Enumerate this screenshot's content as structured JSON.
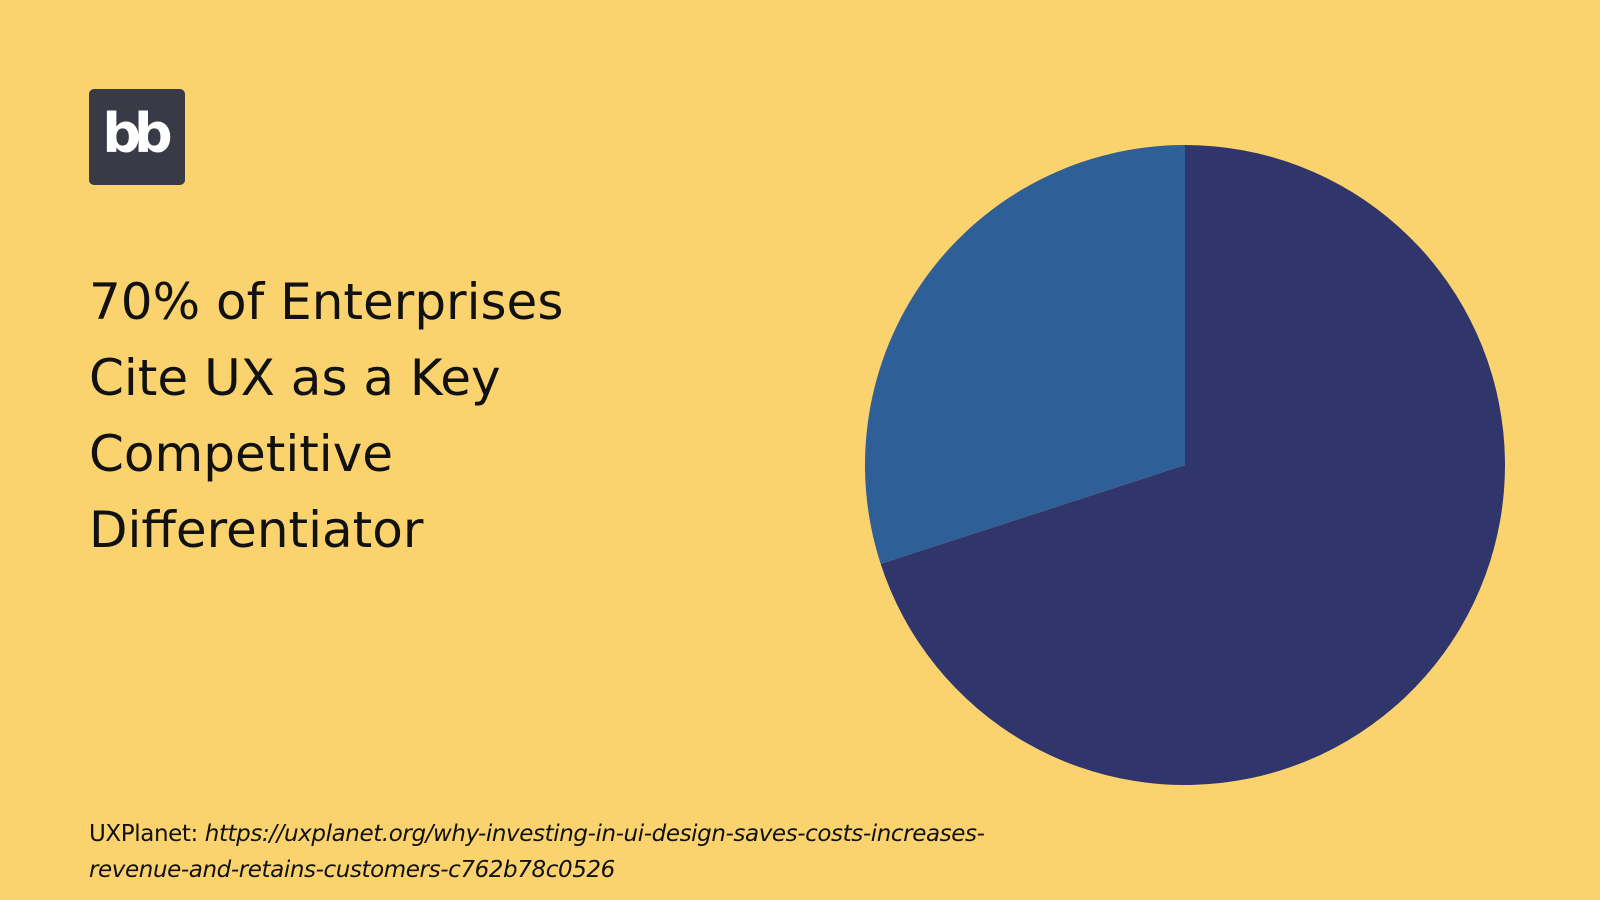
{
  "colors": {
    "background": "#FAD36E",
    "logo_bg": "#383A45",
    "logo_fg": "#FFFFFF",
    "text": "#111111"
  },
  "logo": {
    "text": "bb"
  },
  "headline": "70% of Enterprises Cite UX as a Key Competitive Differentiator",
  "source": {
    "label": "UXPlanet:",
    "url": "https://uxplanet.org/why-investing-in-ui-design-saves-costs-increases-revenue-and-retains-customers-c762b78c0526"
  },
  "chart_data": {
    "type": "pie",
    "title": "",
    "legend": "none",
    "data_labels": false,
    "start_angle_deg": 0,
    "direction": "clockwise",
    "slices": [
      {
        "value": 70,
        "color": "#30356C"
      },
      {
        "value": 30,
        "color": "#2E5F96"
      }
    ]
  }
}
